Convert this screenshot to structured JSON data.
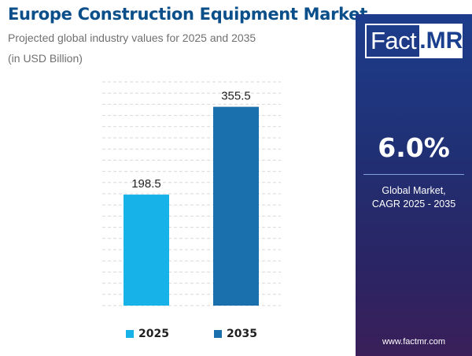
{
  "header": {
    "title": "Europe Construction Equipment Market",
    "subtitle": "Projected global industry values for 2025 and 2035",
    "unit": "(in USD Billion)"
  },
  "chart_data": {
    "type": "bar",
    "categories": [
      "2025",
      "2035"
    ],
    "values": [
      198.5,
      355.5
    ],
    "data_labels": [
      "198.5",
      "355.5"
    ],
    "colors": [
      "#17b2e8",
      "#1a6fad"
    ],
    "title": "Europe Construction Equipment Market",
    "subtitle": "Projected global industry values for 2025 and 2035",
    "xlabel": "",
    "ylabel": "",
    "unit": "USD Billion",
    "ylim": [
      0,
      400
    ],
    "grid": true,
    "legend": {
      "position": "bottom",
      "entries": [
        {
          "label": "2025",
          "color": "#17b2e8"
        },
        {
          "label": "2035",
          "color": "#1a6fad"
        }
      ]
    }
  },
  "panel": {
    "logo_left": "Fact",
    "logo_right": ".MR",
    "cagr_value": "6.0%",
    "cagr_label_line1": "Global Market,",
    "cagr_label_line2": "CAGR 2025 - 2035",
    "website": "www.factmr.com",
    "gradient_top": "#1d3d8c",
    "gradient_bottom": "#3a1f5a"
  }
}
